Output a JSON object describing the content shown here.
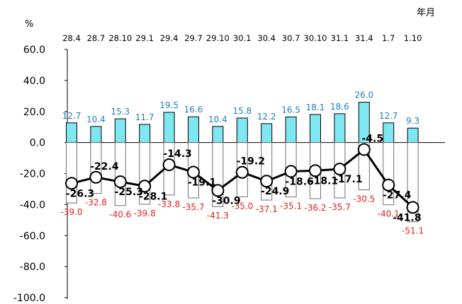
{
  "chart_data": {
    "type": "bar",
    "y_unit": "%",
    "x_unit": "年月",
    "ylim": [
      -100,
      60
    ],
    "yticks": [
      "60.0",
      "40.0",
      "20.0",
      "0.0",
      "-20.0",
      "-40.0",
      "-60.0",
      "-80.0",
      "-100.0"
    ],
    "ytick_values": [
      60,
      40,
      20,
      0,
      -20,
      -40,
      -60,
      -80,
      -100
    ],
    "categories": [
      "28.4",
      "28.7",
      "28.10",
      "29.1",
      "29.4",
      "29.7",
      "29.10",
      "30.1",
      "30.4",
      "30.7",
      "30.10",
      "31.1",
      "31.4",
      "1.7",
      "1.10"
    ],
    "series": [
      {
        "kind": "bar-positive",
        "color": "#7fe7f2",
        "label_color": "#1f7fbf",
        "values": [
          12.7,
          10.4,
          15.3,
          11.7,
          19.5,
          16.6,
          10.4,
          15.8,
          12.2,
          16.5,
          18.1,
          18.6,
          26.0,
          12.7,
          9.3
        ],
        "labels": [
          "12.7",
          "10.4",
          "15.3",
          "11.7",
          "19.5",
          "16.6",
          "10.4",
          "15.8",
          "12.2",
          "16.5",
          "18.1",
          "18.6",
          "26.0",
          "12.7",
          "9.3"
        ]
      },
      {
        "kind": "bar-negative",
        "color": "#ffffff",
        "label_color": "#e0201a",
        "values": [
          -39.0,
          -32.8,
          -40.6,
          -39.8,
          -33.8,
          -35.7,
          -41.3,
          -35.0,
          -37.1,
          -35.1,
          -36.2,
          -35.7,
          -30.5,
          -40.1,
          -51.1
        ],
        "labels": [
          "-39.0",
          "-32.8",
          "-40.6",
          "-39.8",
          "-33.8",
          "-35.7",
          "-41.3",
          "-35.0",
          "-37.1",
          "-35.1",
          "-36.2",
          "-35.7",
          "-30.5",
          "-40.1",
          "-51.1"
        ]
      },
      {
        "kind": "line",
        "color": "#000000",
        "values": [
          -26.3,
          -22.4,
          -25.3,
          -28.1,
          -14.3,
          -19.1,
          -30.9,
          -19.2,
          -24.9,
          -18.6,
          -18.1,
          -17.1,
          -4.5,
          -27.4,
          -41.8
        ],
        "labels": [
          "-26.3",
          "-22.4",
          "-25.3",
          "-28.1",
          "-14.3",
          "-19.1",
          "-30.9",
          "-19.2",
          "-24.9",
          "-18.6",
          "-18.1",
          "-17.1",
          "-4.5",
          "-27.4",
          "-41.8"
        ]
      }
    ],
    "grid": false
  }
}
